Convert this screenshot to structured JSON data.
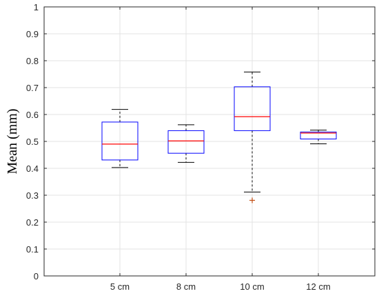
{
  "chart_data": {
    "type": "boxplot",
    "title": "",
    "xlabel": "",
    "ylabel": "Mean (mm)",
    "ylim": [
      0,
      1
    ],
    "yticks": [
      "0",
      "0.1",
      "0.2",
      "0.3",
      "0.4",
      "0.5",
      "0.6",
      "0.7",
      "0.8",
      "0.9",
      "1"
    ],
    "grid": true,
    "categories": [
      "5 cm",
      "8 cm",
      "10 cm",
      "12 cm"
    ],
    "boxes": [
      {
        "category": "5 cm",
        "whisker_low": 0.403,
        "q1": 0.431,
        "median": 0.49,
        "q3": 0.572,
        "whisker_high": 0.619,
        "outliers": []
      },
      {
        "category": "8 cm",
        "whisker_low": 0.422,
        "q1": 0.456,
        "median": 0.502,
        "q3": 0.54,
        "whisker_high": 0.562,
        "outliers": []
      },
      {
        "category": "10 cm",
        "whisker_low": 0.312,
        "q1": 0.54,
        "median": 0.592,
        "q3": 0.703,
        "whisker_high": 0.758,
        "outliers": [
          0.281
        ]
      },
      {
        "category": "12 cm",
        "whisker_low": 0.491,
        "q1": 0.509,
        "median": 0.531,
        "q3": 0.535,
        "whisker_high": 0.542,
        "outliers": []
      }
    ],
    "colors": {
      "box": "#0000ff",
      "median": "#ff0000",
      "whisker": "#000000",
      "outlier": "#c04b10",
      "grid": "#e3e3e3",
      "axis": "#262626"
    }
  }
}
